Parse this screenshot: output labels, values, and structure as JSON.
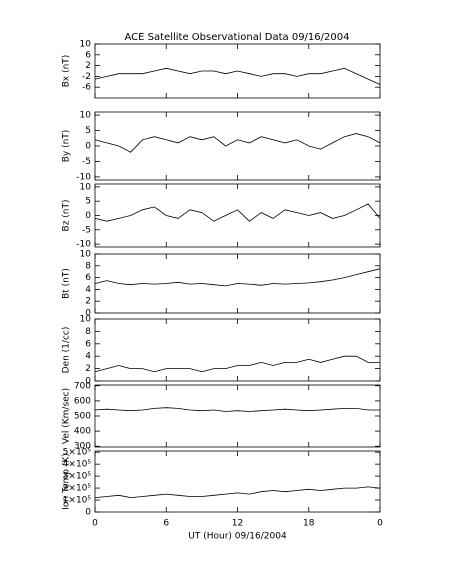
{
  "chart_data": [
    {
      "type": "line",
      "title": "ACE Satellite Observational Data   09/16/2004",
      "ylabel": "Bx (nT)",
      "ylim": [
        -10,
        10
      ],
      "yticks": [
        -6,
        -2,
        2,
        6,
        10
      ],
      "x": [
        0,
        1,
        2,
        3,
        4,
        5,
        6,
        7,
        8,
        9,
        10,
        11,
        12,
        13,
        14,
        15,
        16,
        17,
        18,
        19,
        20,
        21,
        22,
        23,
        24
      ],
      "values": [
        -3,
        -2,
        -1,
        -1,
        -1,
        0,
        1,
        0,
        -1,
        0,
        0,
        -1,
        0,
        -1,
        -2,
        -1,
        -1,
        -2,
        -1,
        -1,
        0,
        1,
        -1,
        -3,
        -5
      ]
    },
    {
      "type": "line",
      "ylabel": "By (nT)",
      "ylim": [
        -11,
        11
      ],
      "yticks": [
        -10,
        -5,
        0,
        5,
        10
      ],
      "x": [
        0,
        1,
        2,
        3,
        4,
        5,
        6,
        7,
        8,
        9,
        10,
        11,
        12,
        13,
        14,
        15,
        16,
        17,
        18,
        19,
        20,
        21,
        22,
        23,
        24
      ],
      "values": [
        2,
        1,
        0,
        -2,
        2,
        3,
        2,
        1,
        3,
        2,
        3,
        0,
        2,
        1,
        3,
        2,
        1,
        2,
        0,
        -1,
        1,
        3,
        4,
        3,
        1
      ]
    },
    {
      "type": "line",
      "ylabel": "Bz (nT)",
      "ylim": [
        -11,
        11
      ],
      "yticks": [
        -10,
        -5,
        0,
        5,
        10
      ],
      "x": [
        0,
        1,
        2,
        3,
        4,
        5,
        6,
        7,
        8,
        9,
        10,
        11,
        12,
        13,
        14,
        15,
        16,
        17,
        18,
        19,
        20,
        21,
        22,
        23,
        24
      ],
      "values": [
        -1,
        -2,
        -1,
        0,
        2,
        3,
        0,
        -1,
        2,
        1,
        -2,
        0,
        2,
        -2,
        1,
        -1,
        2,
        1,
        0,
        1,
        -1,
        0,
        2,
        4,
        -1
      ]
    },
    {
      "type": "line",
      "ylabel": "Bt (nT)",
      "ylim": [
        0,
        10
      ],
      "yticks": [
        0,
        2,
        4,
        6,
        8,
        10
      ],
      "x": [
        0,
        1,
        2,
        3,
        4,
        5,
        6,
        7,
        8,
        9,
        10,
        11,
        12,
        13,
        14,
        15,
        16,
        17,
        18,
        19,
        20,
        21,
        22,
        23,
        24
      ],
      "values": [
        5,
        5.5,
        5,
        4.8,
        5,
        4.9,
        5,
        5.2,
        4.9,
        5,
        4.8,
        4.6,
        5,
        4.9,
        4.7,
        5,
        4.9,
        5,
        5.1,
        5.3,
        5.6,
        6,
        6.5,
        7,
        7.5
      ]
    },
    {
      "type": "line",
      "ylabel": "Den (1/cc)",
      "ylim": [
        0,
        10
      ],
      "yticks": [
        0,
        2,
        4,
        6,
        8,
        10
      ],
      "x": [
        0,
        1,
        2,
        3,
        4,
        5,
        6,
        7,
        8,
        9,
        10,
        11,
        12,
        13,
        14,
        15,
        16,
        17,
        18,
        19,
        20,
        21,
        22,
        23,
        24
      ],
      "values": [
        1.5,
        2,
        2.5,
        2,
        2,
        1.5,
        2,
        2,
        2,
        1.5,
        2,
        2,
        2.5,
        2.5,
        3,
        2.5,
        3,
        3,
        3.5,
        3,
        3.5,
        4,
        4,
        3,
        3
      ]
    },
    {
      "type": "line",
      "ylabel": "Vel (Km/sec)",
      "ylim": [
        295,
        705
      ],
      "yticks": [
        300,
        400,
        500,
        600,
        700
      ],
      "x": [
        0,
        1,
        2,
        3,
        4,
        5,
        6,
        7,
        8,
        9,
        10,
        11,
        12,
        13,
        14,
        15,
        16,
        17,
        18,
        19,
        20,
        21,
        22,
        23,
        24
      ],
      "values": [
        540,
        545,
        540,
        535,
        540,
        550,
        555,
        550,
        540,
        535,
        540,
        530,
        535,
        530,
        535,
        540,
        545,
        540,
        535,
        540,
        545,
        550,
        550,
        540,
        540
      ]
    },
    {
      "type": "line",
      "ylabel": "Ion Temp (K)",
      "xlabel": "UT (Hour)   09/16/2004",
      "ylim": [
        0,
        510000
      ],
      "yticks": [
        0,
        {
          "value": 100000,
          "label": "1×10⁵"
        },
        {
          "value": 200000,
          "label": "2×10⁵"
        },
        {
          "value": 300000,
          "label": "3×10⁵"
        },
        {
          "value": 400000,
          "label": "4×10⁵"
        },
        {
          "value": 500000,
          "label": "5×10⁵"
        }
      ],
      "xlim": [
        0,
        24
      ],
      "xticks": [
        0,
        6,
        12,
        18,
        {
          "value": 24,
          "label": "0"
        }
      ],
      "x": [
        0,
        1,
        2,
        3,
        4,
        5,
        6,
        7,
        8,
        9,
        10,
        11,
        12,
        13,
        14,
        15,
        16,
        17,
        18,
        19,
        20,
        21,
        22,
        23,
        24
      ],
      "values": [
        120000,
        130000,
        140000,
        120000,
        130000,
        140000,
        150000,
        140000,
        130000,
        130000,
        140000,
        150000,
        160000,
        150000,
        170000,
        180000,
        170000,
        180000,
        190000,
        180000,
        190000,
        200000,
        200000,
        210000,
        200000
      ]
    }
  ]
}
